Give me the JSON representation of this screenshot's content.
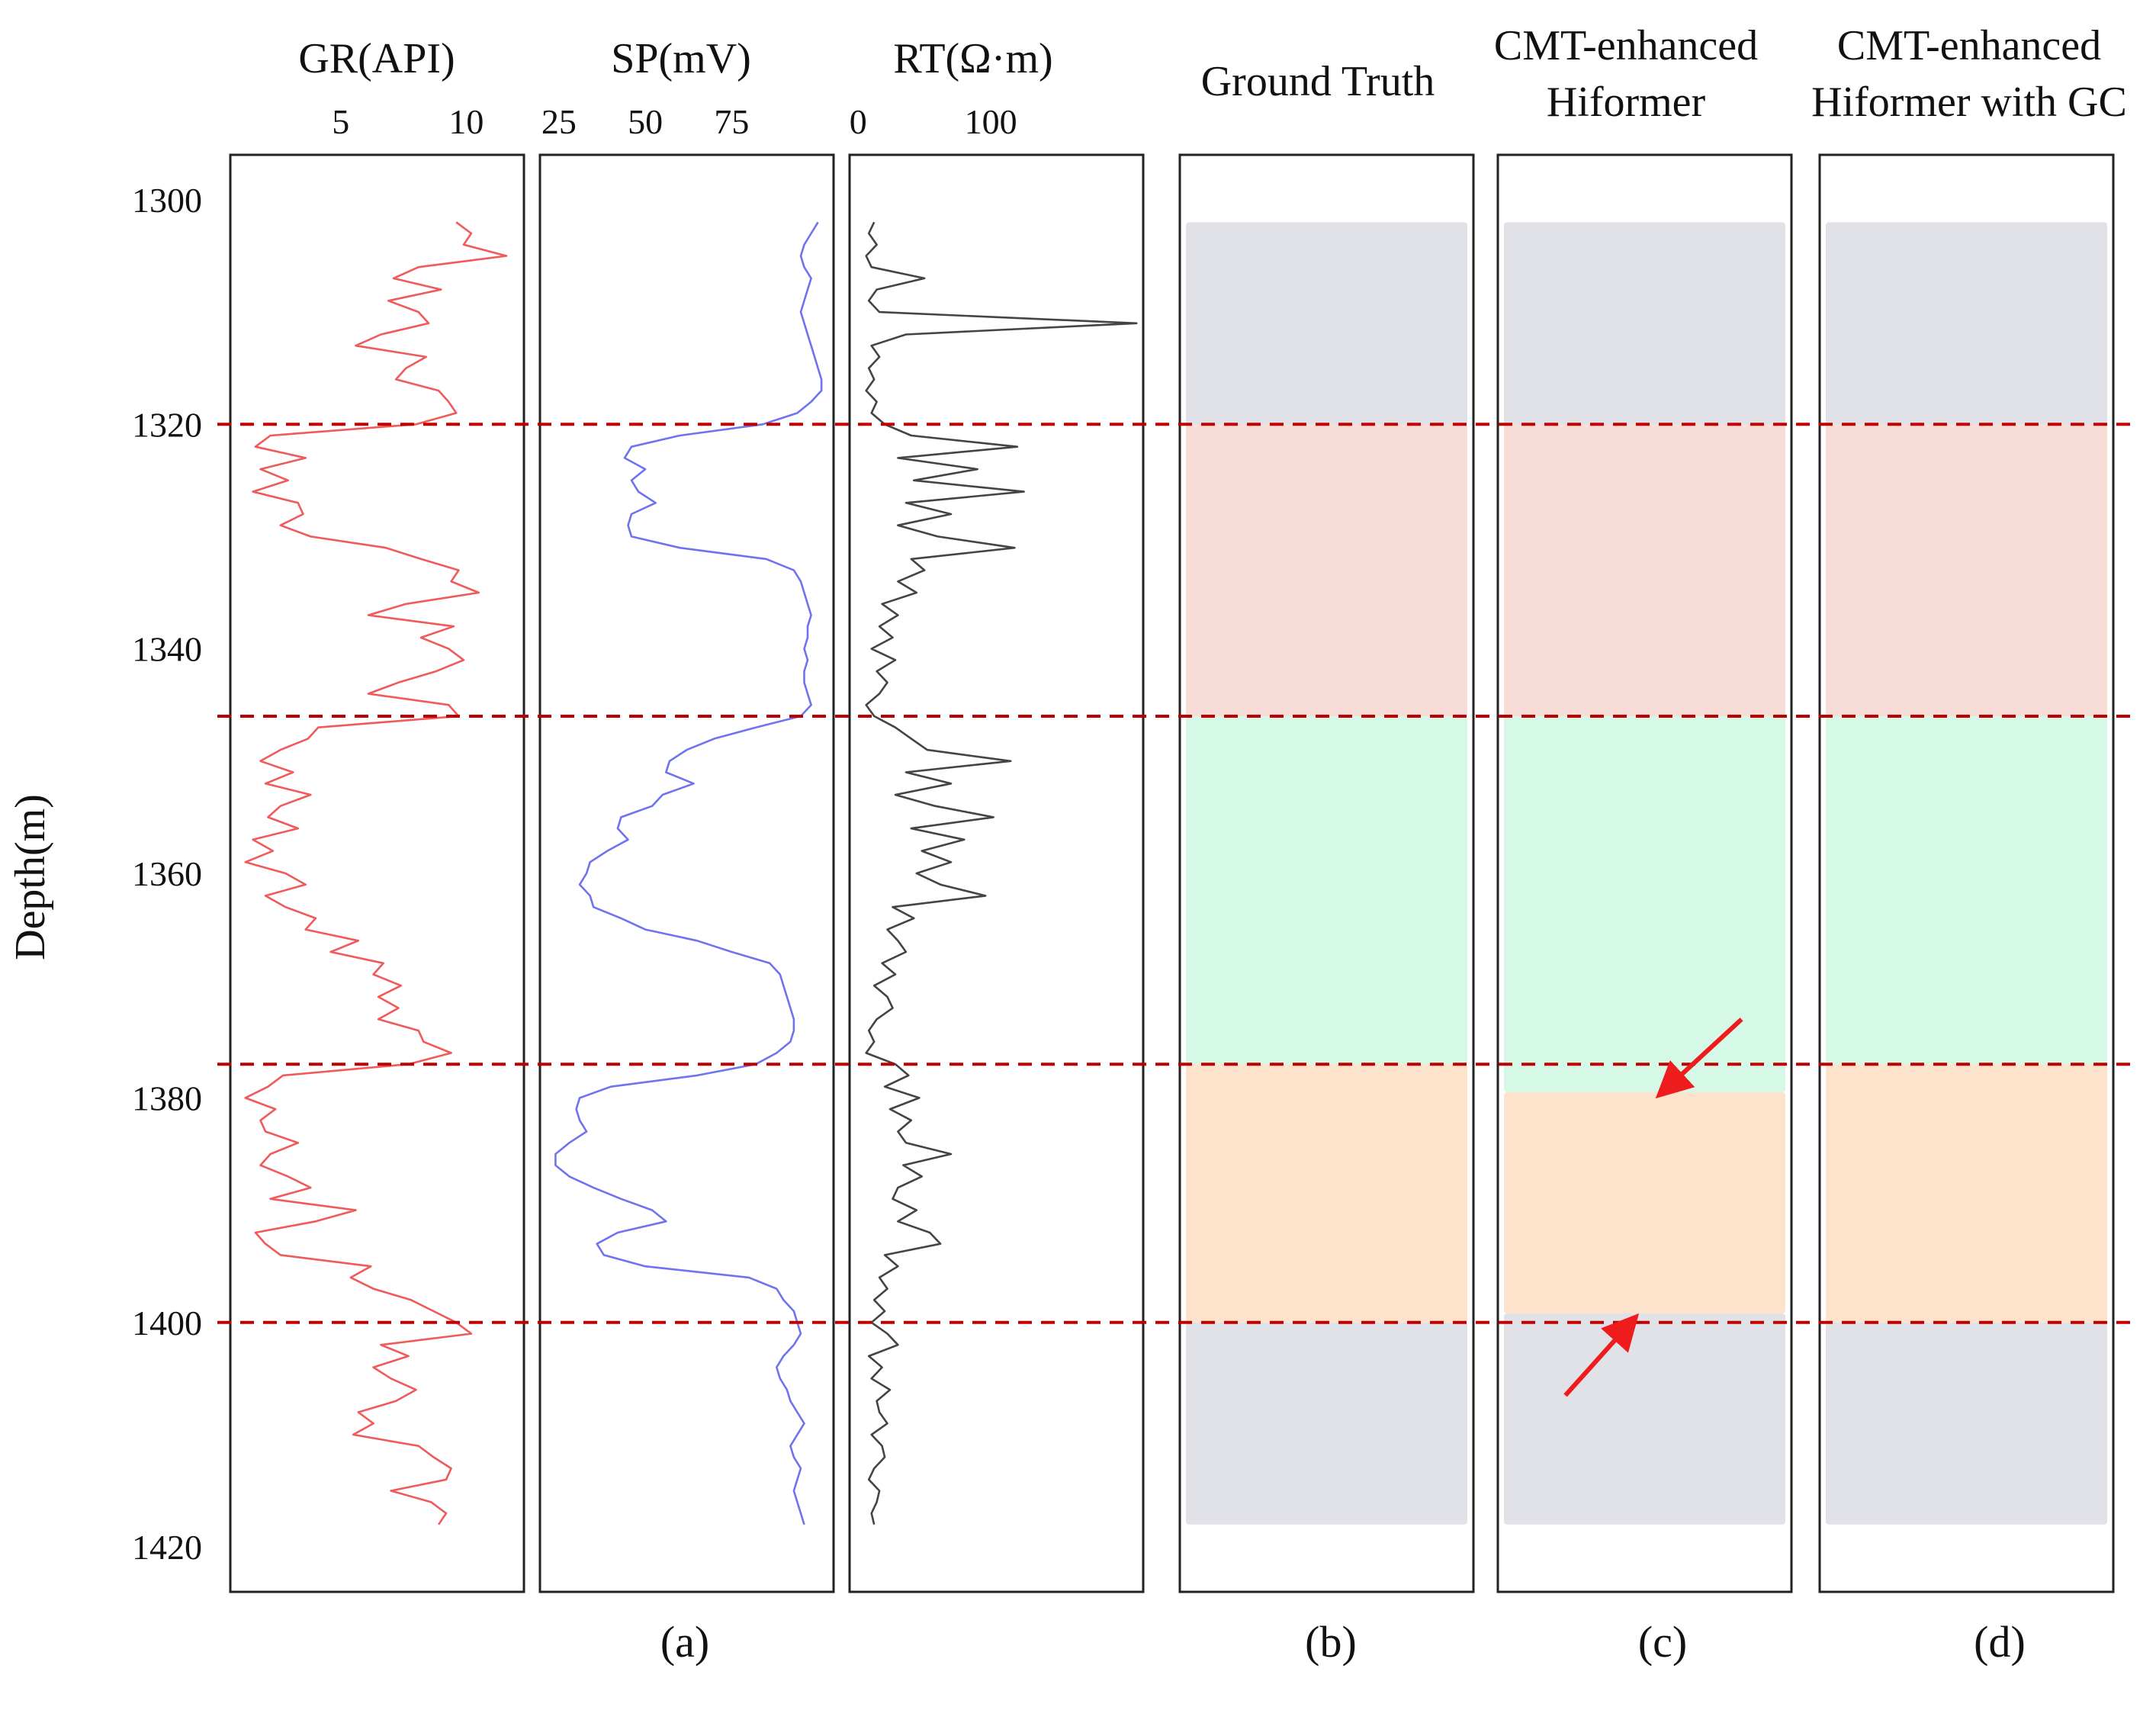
{
  "chart_data": {
    "type": "line",
    "ylabel": "Depth(m)",
    "depth_ticks": [
      1300,
      1320,
      1340,
      1360,
      1380,
      1400,
      1420
    ],
    "depth_range": [
      1296,
      1424
    ],
    "boundaries": [
      1320,
      1346,
      1377,
      1400
    ],
    "boundary_color": "#c00000",
    "tracks": [
      {
        "name": "GR(API)",
        "ticks": [
          5,
          10
        ],
        "xlim": [
          0.6,
          12.3
        ],
        "color": "#f05a5a",
        "depth": [
          1302,
          1303,
          1304,
          1305,
          1306,
          1307,
          1308,
          1309,
          1310,
          1311,
          1312,
          1313,
          1314,
          1315,
          1316,
          1317,
          1318,
          1319,
          1320,
          1321,
          1322,
          1323,
          1324,
          1325,
          1326,
          1327,
          1328,
          1329,
          1330,
          1331,
          1332,
          1333,
          1334,
          1335,
          1336,
          1337,
          1338,
          1339,
          1340,
          1341,
          1342,
          1343,
          1344,
          1345,
          1346,
          1347,
          1348,
          1349,
          1350,
          1351,
          1352,
          1353,
          1354,
          1355,
          1356,
          1357,
          1358,
          1359,
          1360,
          1361,
          1362,
          1363,
          1364,
          1365,
          1366,
          1367,
          1368,
          1369,
          1370,
          1371,
          1372,
          1373,
          1374,
          1375,
          1376,
          1377,
          1378,
          1379,
          1380,
          1381,
          1382,
          1383,
          1384,
          1385,
          1386,
          1387,
          1388,
          1389,
          1390,
          1391,
          1392,
          1393,
          1394,
          1395,
          1396,
          1397,
          1398,
          1399,
          1400,
          1401,
          1402,
          1403,
          1404,
          1405,
          1406,
          1407,
          1408,
          1409,
          1410,
          1411,
          1412,
          1413,
          1414,
          1415,
          1416,
          1417,
          1418
        ],
        "values": [
          9.6,
          10.2,
          9.9,
          11.6,
          8.1,
          7.1,
          9.0,
          6.9,
          8.1,
          8.5,
          6.6,
          5.6,
          8.4,
          7.6,
          7.2,
          8.9,
          9.3,
          9.6,
          8.0,
          2.2,
          1.6,
          3.6,
          1.8,
          2.9,
          1.5,
          3.3,
          3.5,
          2.6,
          3.8,
          6.8,
          8.2,
          9.7,
          9.4,
          10.5,
          7.6,
          6.1,
          9.5,
          8.2,
          9.3,
          9.9,
          8.8,
          7.3,
          6.1,
          9.3,
          9.7,
          4.1,
          3.7,
          2.6,
          1.8,
          3.1,
          2.0,
          3.8,
          2.6,
          2.1,
          3.3,
          1.5,
          2.3,
          1.2,
          2.8,
          3.6,
          2.0,
          2.8,
          4.0,
          3.6,
          5.7,
          4.6,
          6.7,
          6.3,
          7.4,
          6.5,
          7.3,
          6.5,
          8.1,
          8.3,
          9.4,
          7.7,
          2.7,
          2.1,
          1.2,
          2.4,
          1.8,
          2.0,
          3.3,
          2.2,
          1.8,
          2.9,
          3.8,
          2.2,
          5.6,
          4.0,
          1.6,
          2.0,
          2.6,
          6.2,
          5.4,
          6.3,
          7.8,
          8.7,
          9.6,
          10.2,
          6.6,
          7.7,
          6.3,
          7.0,
          8.0,
          7.2,
          5.7,
          6.3,
          5.5,
          8.1,
          8.7,
          9.4,
          9.2,
          7.0,
          8.6,
          9.2,
          8.9
        ]
      },
      {
        "name": "SP(mV)",
        "ticks": [
          25,
          50,
          75
        ],
        "xlim": [
          19.5,
          104.5
        ],
        "color": "#6f73ef",
        "depth": [
          1302,
          1303,
          1304,
          1305,
          1306,
          1307,
          1308,
          1309,
          1310,
          1311,
          1312,
          1313,
          1314,
          1315,
          1316,
          1317,
          1318,
          1319,
          1320,
          1321,
          1322,
          1323,
          1324,
          1325,
          1326,
          1327,
          1328,
          1329,
          1330,
          1331,
          1332,
          1333,
          1334,
          1335,
          1336,
          1337,
          1338,
          1339,
          1340,
          1341,
          1342,
          1343,
          1344,
          1345,
          1346,
          1347,
          1348,
          1349,
          1350,
          1351,
          1352,
          1353,
          1354,
          1355,
          1356,
          1357,
          1358,
          1359,
          1360,
          1361,
          1362,
          1363,
          1364,
          1365,
          1366,
          1367,
          1368,
          1369,
          1370,
          1371,
          1372,
          1373,
          1374,
          1375,
          1376,
          1377,
          1378,
          1379,
          1380,
          1381,
          1382,
          1383,
          1384,
          1385,
          1386,
          1387,
          1388,
          1389,
          1390,
          1391,
          1392,
          1393,
          1394,
          1395,
          1396,
          1397,
          1398,
          1399,
          1400,
          1401,
          1402,
          1403,
          1404,
          1405,
          1406,
          1407,
          1408,
          1409,
          1410,
          1411,
          1412,
          1413,
          1414,
          1415,
          1416,
          1417,
          1418
        ],
        "values": [
          100,
          98,
          96,
          95,
          96,
          98,
          97,
          96,
          95,
          96,
          97,
          98,
          99,
          100,
          101,
          101,
          98,
          94,
          84,
          60,
          46,
          44,
          50,
          46,
          48,
          53,
          46,
          45,
          46,
          60,
          85,
          93,
          95,
          96,
          97,
          98,
          97,
          97,
          96,
          97,
          96,
          96,
          97,
          98,
          95,
          82,
          70,
          62,
          57,
          56,
          64,
          55,
          52,
          43,
          42,
          45,
          39,
          34,
          33,
          31,
          34,
          35,
          43,
          50,
          65,
          75,
          86,
          89,
          90,
          91,
          92,
          93,
          93,
          92,
          88,
          82,
          65,
          40,
          31,
          30,
          31,
          33,
          28,
          24,
          24,
          28,
          35,
          43,
          52,
          56,
          42,
          36,
          38,
          50,
          80,
          88,
          90,
          93,
          94,
          95,
          93,
          90,
          88,
          89,
          91,
          92,
          94,
          96,
          94,
          92,
          93,
          95,
          94,
          93,
          94,
          95,
          96
        ]
      },
      {
        "name": "RT(Ω·m)",
        "ticks": [
          0,
          100
        ],
        "xlim": [
          -6.5,
          215
        ],
        "color": "#444444",
        "depth": [
          1302,
          1303,
          1304,
          1305,
          1306,
          1307,
          1308,
          1309,
          1310,
          1311,
          1312,
          1313,
          1314,
          1315,
          1316,
          1317,
          1318,
          1319,
          1320,
          1321,
          1322,
          1323,
          1324,
          1325,
          1326,
          1327,
          1328,
          1329,
          1330,
          1331,
          1332,
          1333,
          1334,
          1335,
          1336,
          1337,
          1338,
          1339,
          1340,
          1341,
          1342,
          1343,
          1344,
          1345,
          1346,
          1347,
          1348,
          1349,
          1350,
          1351,
          1352,
          1353,
          1354,
          1355,
          1356,
          1357,
          1358,
          1359,
          1360,
          1361,
          1362,
          1363,
          1364,
          1365,
          1366,
          1367,
          1368,
          1369,
          1370,
          1371,
          1372,
          1373,
          1374,
          1375,
          1376,
          1377,
          1378,
          1379,
          1380,
          1381,
          1382,
          1383,
          1384,
          1385,
          1386,
          1387,
          1388,
          1389,
          1390,
          1391,
          1392,
          1393,
          1394,
          1395,
          1396,
          1397,
          1398,
          1399,
          1400,
          1401,
          1402,
          1403,
          1404,
          1405,
          1406,
          1407,
          1408,
          1409,
          1410,
          1411,
          1412,
          1413,
          1414,
          1415,
          1416,
          1417,
          1418
        ],
        "values": [
          12,
          8,
          14,
          6,
          10,
          50,
          14,
          8,
          16,
          210,
          36,
          10,
          16,
          8,
          12,
          6,
          14,
          10,
          20,
          40,
          120,
          30,
          90,
          42,
          125,
          36,
          70,
          30,
          60,
          118,
          40,
          50,
          30,
          44,
          18,
          30,
          16,
          26,
          10,
          28,
          14,
          22,
          16,
          6,
          12,
          28,
          40,
          52,
          115,
          36,
          70,
          28,
          58,
          102,
          40,
          80,
          48,
          70,
          44,
          62,
          96,
          26,
          42,
          22,
          30,
          36,
          18,
          28,
          12,
          22,
          26,
          14,
          8,
          12,
          6,
          28,
          38,
          20,
          46,
          24,
          40,
          30,
          36,
          70,
          34,
          48,
          30,
          26,
          44,
          30,
          54,
          62,
          20,
          30,
          16,
          22,
          12,
          20,
          10,
          22,
          30,
          8,
          18,
          10,
          24,
          14,
          16,
          22,
          10,
          18,
          20,
          12,
          8,
          16,
          14,
          10,
          12
        ]
      }
    ],
    "classification_panels": [
      {
        "title_lines": [
          "Ground Truth"
        ],
        "label": "(b)",
        "segments": [
          {
            "start": 1302,
            "end": 1320,
            "color": "#e1e1e8"
          },
          {
            "start": 1320,
            "end": 1346,
            "color": "#f8dcd8"
          },
          {
            "start": 1346,
            "end": 1377,
            "color": "#d6f8e6"
          },
          {
            "start": 1377,
            "end": 1400,
            "color": "#fde3cc"
          },
          {
            "start": 1400,
            "end": 1418,
            "color": "#e1e1e8"
          }
        ]
      },
      {
        "title_lines": [
          "CMT-enhanced",
          "Hiformer"
        ],
        "label": "(c)",
        "segments": [
          {
            "start": 1302,
            "end": 1320,
            "color": "#e1e1e8"
          },
          {
            "start": 1320,
            "end": 1346,
            "color": "#f8dcd8"
          },
          {
            "start": 1346,
            "end": 1379.5,
            "color": "#d6f8e6"
          },
          {
            "start": 1379.5,
            "end": 1399.2,
            "color": "#fde3cc"
          },
          {
            "start": 1399.2,
            "end": 1418,
            "color": "#e1e1e8"
          }
        ],
        "arrows": [
          {
            "from_frac": 0.83,
            "from_depth": 1373,
            "to_frac": 0.56,
            "to_depth": 1379.5
          },
          {
            "from_frac": 0.23,
            "from_depth": 1406.5,
            "to_frac": 0.46,
            "to_depth": 1399.8
          }
        ],
        "arrow_color": "#ee1c1c"
      },
      {
        "title_lines": [
          "CMT-enhanced",
          "Hiformer with GC"
        ],
        "label": "(d)",
        "segments": [
          {
            "start": 1302,
            "end": 1320,
            "color": "#e1e1e8"
          },
          {
            "start": 1320,
            "end": 1346,
            "color": "#f8dcd8"
          },
          {
            "start": 1346,
            "end": 1377,
            "color": "#d6f8e6"
          },
          {
            "start": 1377,
            "end": 1400,
            "color": "#fde3cc"
          },
          {
            "start": 1400,
            "end": 1418,
            "color": "#e1e1e8"
          }
        ]
      }
    ],
    "logs_label": "(a)"
  }
}
